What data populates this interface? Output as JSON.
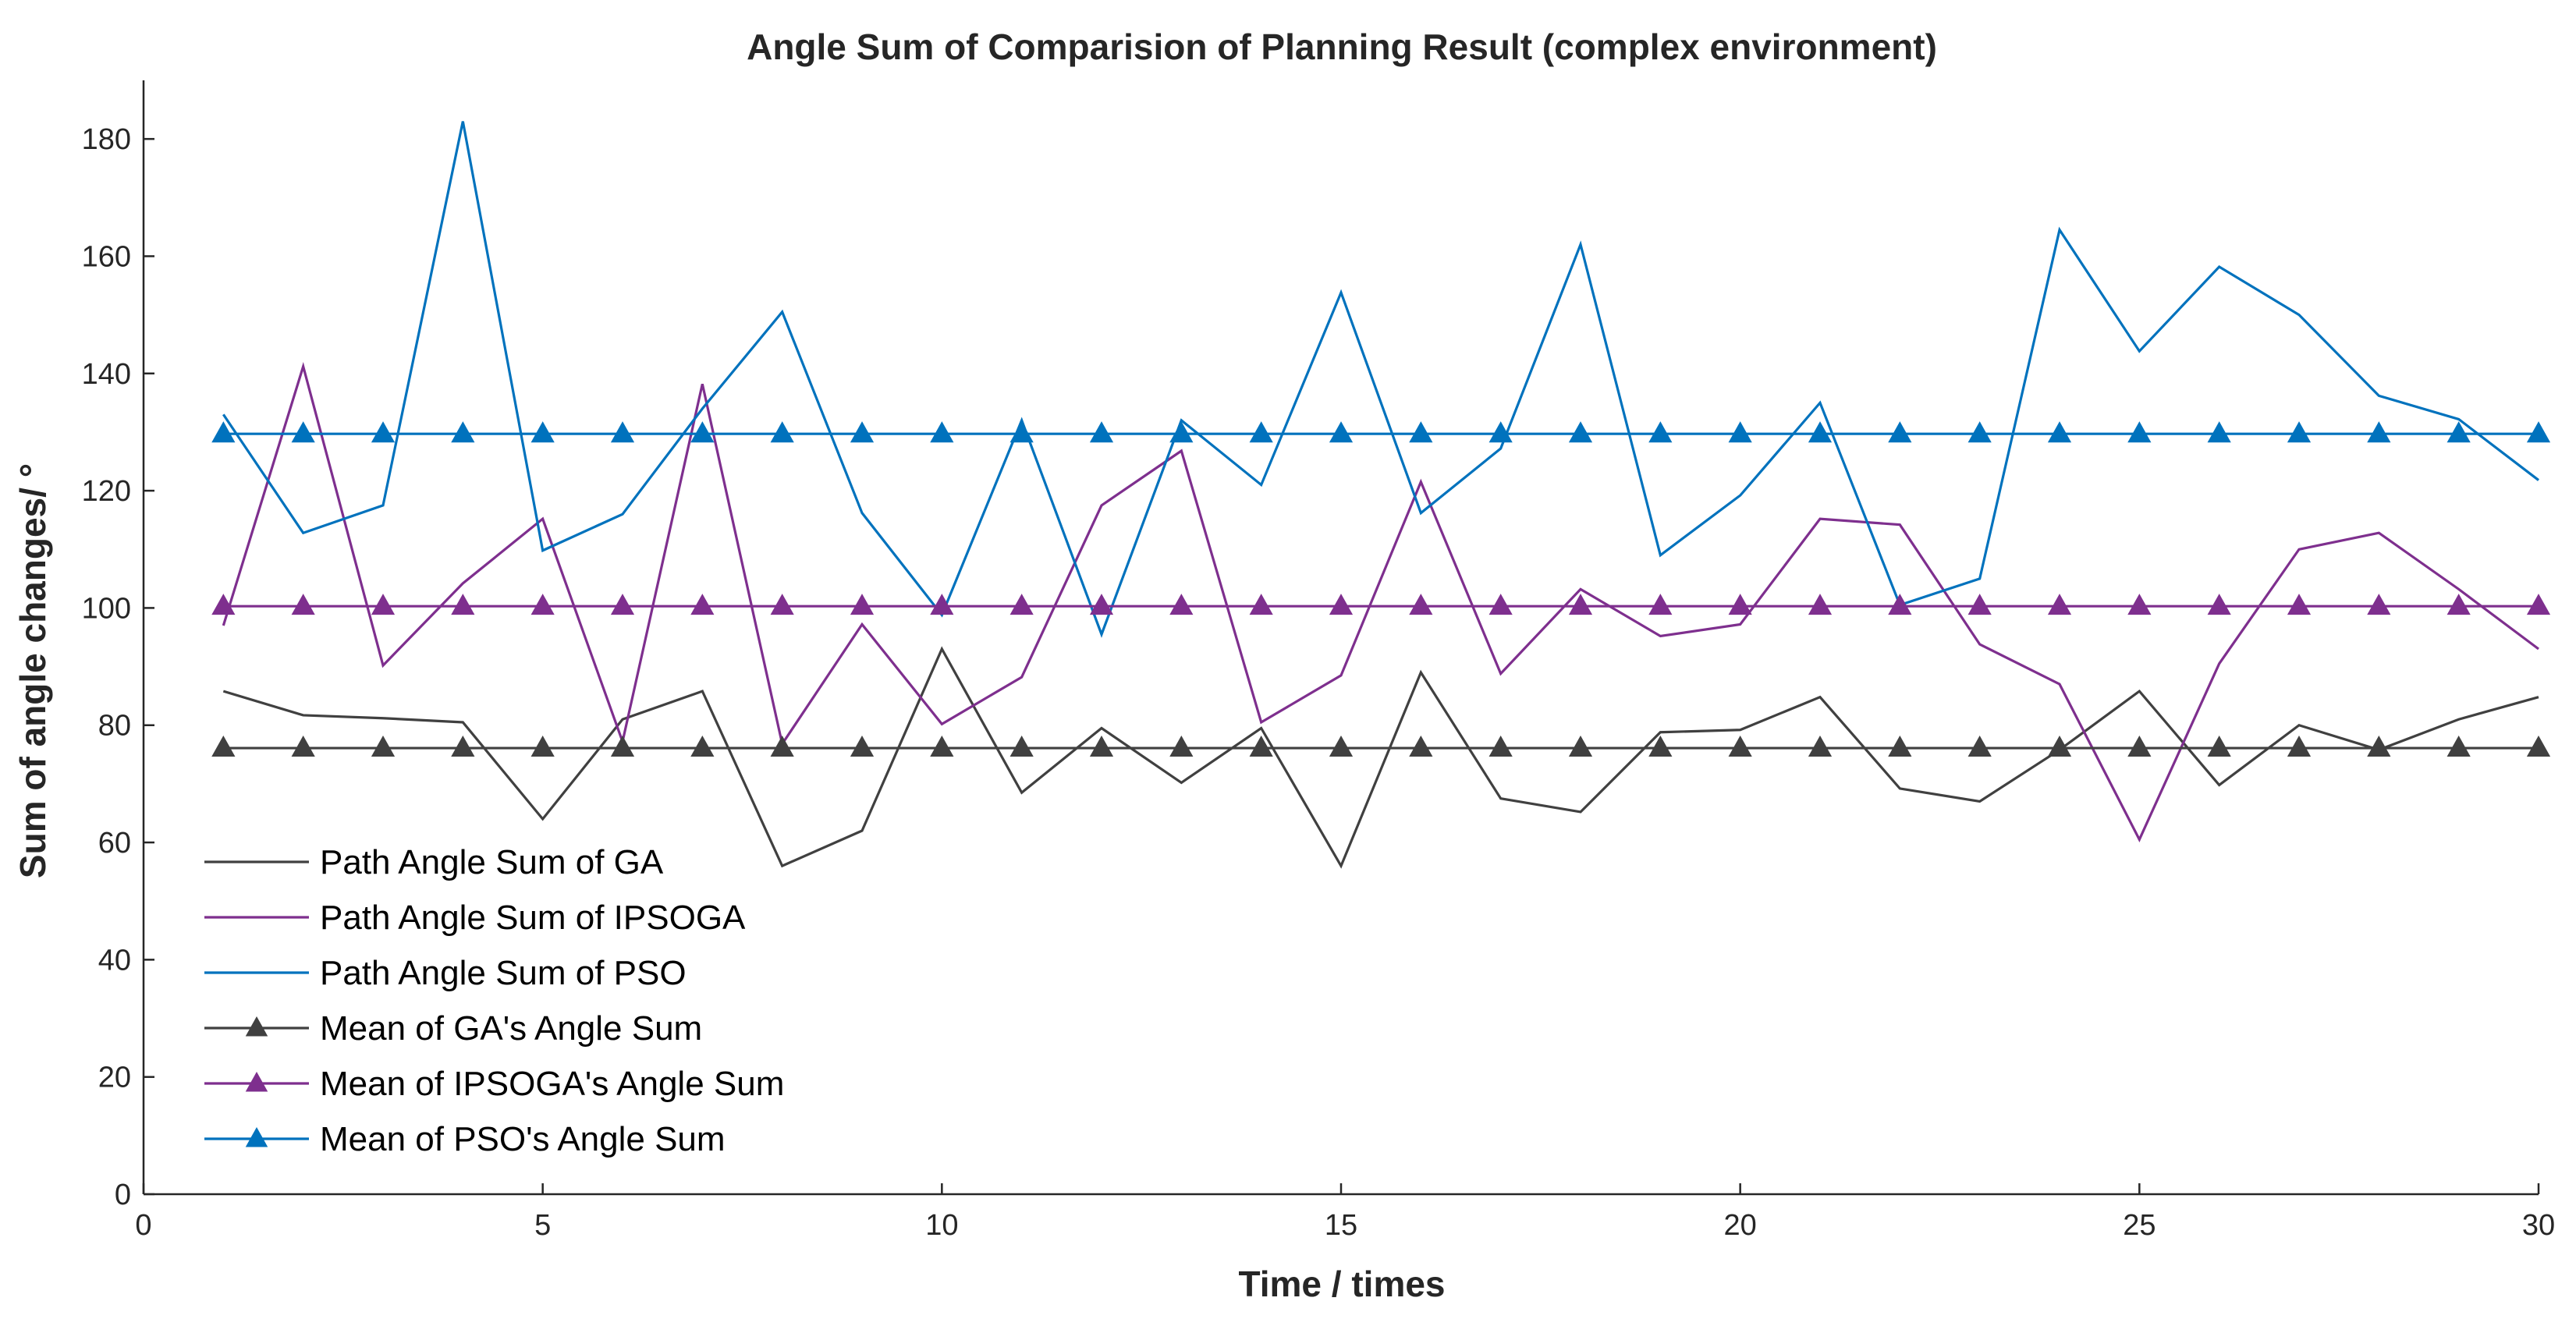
{
  "chart_data": {
    "type": "line",
    "title": "Angle Sum of Comparision of Planning Result (complex environment)",
    "xlabel": "Time / times",
    "ylabel": "Sum of angle changes/ °",
    "xlim": [
      0,
      30
    ],
    "ylim": [
      0,
      190
    ],
    "xticks": [
      0,
      5,
      10,
      15,
      20,
      25,
      30
    ],
    "yticks": [
      0,
      20,
      40,
      60,
      80,
      100,
      120,
      140,
      160,
      180
    ],
    "grid": false,
    "legend_position": "bottom-left",
    "x": [
      1,
      2,
      3,
      4,
      5,
      6,
      7,
      8,
      9,
      10,
      11,
      12,
      13,
      14,
      15,
      16,
      17,
      18,
      19,
      20,
      21,
      22,
      23,
      24,
      25,
      26,
      27,
      28,
      29,
      30
    ],
    "series": [
      {
        "name": "Path Angle Sum of GA",
        "color": "#404040",
        "marker": "none",
        "values": [
          85.8,
          81.7,
          81.2,
          80.5,
          64,
          81,
          85.8,
          56,
          62,
          93,
          68.5,
          79.5,
          70.2,
          79.5,
          56,
          89,
          67.5,
          65.2,
          78.8,
          79.2,
          84.8,
          69.2,
          67,
          75.8,
          85.8,
          69.8,
          80,
          75.8,
          81,
          84.8
        ]
      },
      {
        "name": "Path Angle Sum of IPSOGA",
        "color": "#7e2f8e",
        "marker": "none",
        "values": [
          97,
          141.2,
          90.2,
          104.2,
          115.2,
          77.2,
          138.2,
          76.8,
          97.2,
          80.2,
          88.2,
          117.5,
          126.8,
          80.5,
          88.5,
          121.5,
          88.8,
          103.2,
          95.2,
          97.2,
          115.2,
          114.2,
          93.8,
          87,
          60.5,
          90.5,
          110,
          112.8,
          103.2,
          93
        ]
      },
      {
        "name": "Path Angle Sum of PSO",
        "color": "#0072bd",
        "marker": "none",
        "values": [
          133,
          112.8,
          117.5,
          183,
          109.8,
          116,
          134,
          150.5,
          116.2,
          98.8,
          132,
          95.5,
          132,
          121,
          153.8,
          116.2,
          127.2,
          162,
          109,
          119.2,
          135,
          100.5,
          105,
          164.5,
          143.8,
          158.2,
          150,
          136.2,
          132.2,
          121.8
        ]
      },
      {
        "name": "Mean of GA's Angle Sum",
        "color": "#404040",
        "marker": "triangle",
        "values": [
          76.1,
          76.1,
          76.1,
          76.1,
          76.1,
          76.1,
          76.1,
          76.1,
          76.1,
          76.1,
          76.1,
          76.1,
          76.1,
          76.1,
          76.1,
          76.1,
          76.1,
          76.1,
          76.1,
          76.1,
          76.1,
          76.1,
          76.1,
          76.1,
          76.1,
          76.1,
          76.1,
          76.1,
          76.1,
          76.1
        ]
      },
      {
        "name": "Mean of IPSOGA's Angle Sum",
        "color": "#7e2f8e",
        "marker": "triangle",
        "values": [
          100.3,
          100.3,
          100.3,
          100.3,
          100.3,
          100.3,
          100.3,
          100.3,
          100.3,
          100.3,
          100.3,
          100.3,
          100.3,
          100.3,
          100.3,
          100.3,
          100.3,
          100.3,
          100.3,
          100.3,
          100.3,
          100.3,
          100.3,
          100.3,
          100.3,
          100.3,
          100.3,
          100.3,
          100.3,
          100.3
        ]
      },
      {
        "name": "Mean of PSO's Angle Sum",
        "color": "#0072bd",
        "marker": "triangle",
        "values": [
          129.7,
          129.7,
          129.7,
          129.7,
          129.7,
          129.7,
          129.7,
          129.7,
          129.7,
          129.7,
          129.7,
          129.7,
          129.7,
          129.7,
          129.7,
          129.7,
          129.7,
          129.7,
          129.7,
          129.7,
          129.7,
          129.7,
          129.7,
          129.7,
          129.7,
          129.7,
          129.7,
          129.7,
          129.7,
          129.7
        ]
      }
    ]
  }
}
